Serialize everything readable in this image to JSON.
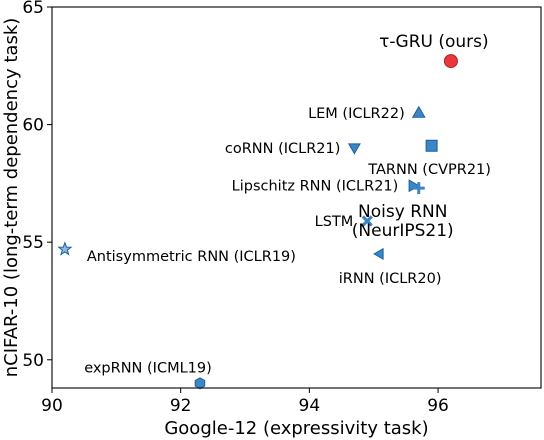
{
  "chart_data": {
    "type": "scatter",
    "title": "",
    "xlabel": "Google-12 (expressivity task)",
    "ylabel": "nCIFAR-10 (long-term dependency task)",
    "xlim": [
      90,
      97.6
    ],
    "ylim": [
      48.8,
      65
    ],
    "xticks": [
      90,
      92,
      94,
      96
    ],
    "yticks": [
      50,
      55,
      60,
      65
    ],
    "grid": false,
    "legend": "none",
    "colors": {
      "baseline": "#3b86c4",
      "baseline_edge": "#1f5f99",
      "ours": "#e8383d",
      "ours_edge": "#b02020"
    },
    "points": [
      {
        "label": "τ-GRU (ours)",
        "x": 96.2,
        "y": 62.7,
        "marker": "circle",
        "color": "ours",
        "label_pos": "above-left",
        "big": true
      },
      {
        "label": "LEM (ICLR22)",
        "x": 95.7,
        "y": 60.5,
        "marker": "triangle-up",
        "color": "baseline",
        "label_pos": "left"
      },
      {
        "label": "coRNN (ICLR21)",
        "x": 94.7,
        "y": 59.0,
        "marker": "triangle-down",
        "color": "baseline",
        "label_pos": "left"
      },
      {
        "label": "TARNN (CVPR21)",
        "x": 95.9,
        "y": 59.1,
        "marker": "square",
        "color": "baseline",
        "label_pos": "below"
      },
      {
        "label": "Lipschitz RNN (ICLR21)",
        "x": 95.6,
        "y": 57.4,
        "marker": "triangle-right",
        "color": "baseline",
        "label_pos": "left"
      },
      {
        "label": "Noisy RNN (NeurIPS21)",
        "x": 95.7,
        "y": 57.3,
        "marker": "plus",
        "color": "baseline",
        "label_pos": "below",
        "big": true
      },
      {
        "label": "LSTM",
        "x": 94.9,
        "y": 55.9,
        "marker": "x",
        "color": "baseline",
        "label_pos": "left"
      },
      {
        "label": "Antisymmetric RNN (ICLR19)",
        "x": 90.2,
        "y": 54.7,
        "marker": "star",
        "color": "baseline",
        "label_pos": "right"
      },
      {
        "label": "iRNN (ICLR20)",
        "x": 95.1,
        "y": 54.5,
        "marker": "triangle-left",
        "color": "baseline",
        "label_pos": "below"
      },
      {
        "label": "expRNN (ICML19)",
        "x": 92.3,
        "y": 49.0,
        "marker": "hexagon",
        "color": "baseline",
        "label_pos": "above"
      }
    ]
  }
}
